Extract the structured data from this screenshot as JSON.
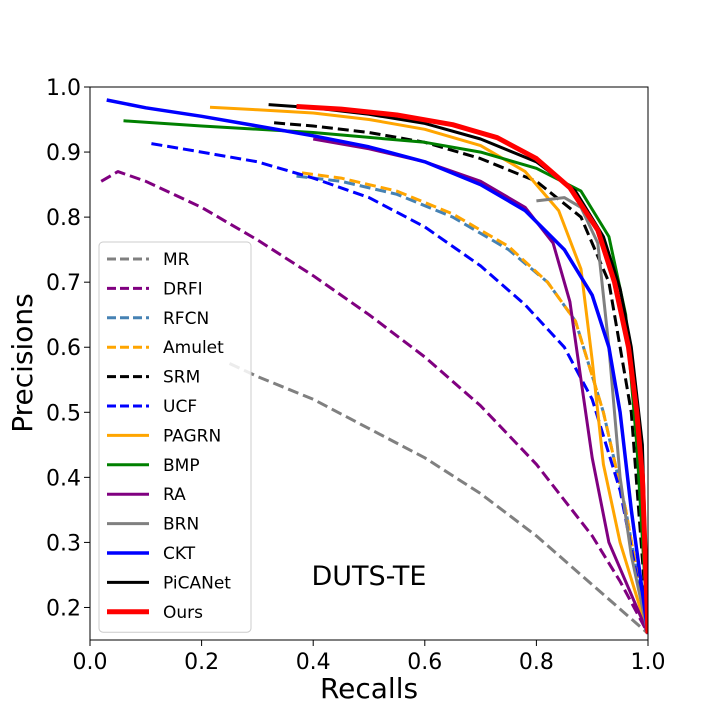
{
  "chart_data": {
    "type": "line",
    "title": "",
    "xlabel": "Recalls",
    "ylabel": "Precisions",
    "xlim": [
      0.0,
      1.0
    ],
    "ylim": [
      0.15,
      1.0
    ],
    "xticks": [
      0.0,
      0.2,
      0.4,
      0.6,
      0.8,
      1.0
    ],
    "xtick_labels": [
      "0.0",
      "0.2",
      "0.4",
      "0.6",
      "0.8",
      "1.0"
    ],
    "yticks": [
      0.2,
      0.3,
      0.4,
      0.5,
      0.6,
      0.7,
      0.8,
      0.9,
      1.0
    ],
    "ytick_labels": [
      "0.2",
      "0.3",
      "0.4",
      "0.5",
      "0.6",
      "0.7",
      "0.8",
      "0.9",
      "1.0"
    ],
    "grid": false,
    "legend_position": "lower-left",
    "annotation": "DUTS-TE",
    "series": [
      {
        "name": "MR",
        "color": "#808080",
        "dash": "dashed",
        "width": 3,
        "points": [
          [
            0.25,
            0.575
          ],
          [
            0.3,
            0.555
          ],
          [
            0.4,
            0.52
          ],
          [
            0.5,
            0.475
          ],
          [
            0.6,
            0.43
          ],
          [
            0.7,
            0.375
          ],
          [
            0.8,
            0.31
          ],
          [
            0.9,
            0.235
          ],
          [
            1.0,
            0.16
          ]
        ]
      },
      {
        "name": "DRFI",
        "color": "#800080",
        "dash": "dashed",
        "width": 3,
        "points": [
          [
            0.02,
            0.855
          ],
          [
            0.05,
            0.87
          ],
          [
            0.1,
            0.855
          ],
          [
            0.2,
            0.815
          ],
          [
            0.3,
            0.765
          ],
          [
            0.4,
            0.71
          ],
          [
            0.5,
            0.65
          ],
          [
            0.6,
            0.585
          ],
          [
            0.7,
            0.51
          ],
          [
            0.8,
            0.42
          ],
          [
            0.9,
            0.31
          ],
          [
            0.95,
            0.24
          ],
          [
            1.0,
            0.16
          ]
        ]
      },
      {
        "name": "RFCN",
        "color": "#4682b4",
        "dash": "dashed",
        "width": 3,
        "points": [
          [
            0.37,
            0.863
          ],
          [
            0.45,
            0.855
          ],
          [
            0.55,
            0.835
          ],
          [
            0.65,
            0.8
          ],
          [
            0.75,
            0.75
          ],
          [
            0.82,
            0.7
          ],
          [
            0.87,
            0.64
          ],
          [
            0.92,
            0.5
          ],
          [
            0.96,
            0.35
          ],
          [
            1.0,
            0.16
          ]
        ]
      },
      {
        "name": "Amulet",
        "color": "#ffa500",
        "dash": "dashed",
        "width": 3,
        "points": [
          [
            0.38,
            0.868
          ],
          [
            0.45,
            0.86
          ],
          [
            0.55,
            0.84
          ],
          [
            0.65,
            0.805
          ],
          [
            0.75,
            0.755
          ],
          [
            0.82,
            0.7
          ],
          [
            0.87,
            0.64
          ],
          [
            0.92,
            0.5
          ],
          [
            0.96,
            0.35
          ],
          [
            1.0,
            0.16
          ]
        ]
      },
      {
        "name": "SRM",
        "color": "#000000",
        "dash": "dashed",
        "width": 3,
        "points": [
          [
            0.33,
            0.945
          ],
          [
            0.4,
            0.94
          ],
          [
            0.5,
            0.93
          ],
          [
            0.6,
            0.915
          ],
          [
            0.7,
            0.89
          ],
          [
            0.8,
            0.855
          ],
          [
            0.88,
            0.8
          ],
          [
            0.93,
            0.7
          ],
          [
            0.97,
            0.5
          ],
          [
            1.0,
            0.16
          ]
        ]
      },
      {
        "name": "UCF",
        "color": "#0000ff",
        "dash": "dashed",
        "width": 3,
        "points": [
          [
            0.11,
            0.913
          ],
          [
            0.2,
            0.9
          ],
          [
            0.3,
            0.885
          ],
          [
            0.4,
            0.86
          ],
          [
            0.5,
            0.83
          ],
          [
            0.6,
            0.785
          ],
          [
            0.7,
            0.725
          ],
          [
            0.78,
            0.665
          ],
          [
            0.85,
            0.6
          ],
          [
            0.9,
            0.52
          ],
          [
            0.95,
            0.38
          ],
          [
            1.0,
            0.16
          ]
        ]
      },
      {
        "name": "PAGRN",
        "color": "#ffa500",
        "dash": "solid",
        "width": 3,
        "points": [
          [
            0.215,
            0.969
          ],
          [
            0.3,
            0.965
          ],
          [
            0.4,
            0.96
          ],
          [
            0.5,
            0.95
          ],
          [
            0.6,
            0.935
          ],
          [
            0.7,
            0.91
          ],
          [
            0.78,
            0.87
          ],
          [
            0.84,
            0.81
          ],
          [
            0.88,
            0.72
          ],
          [
            0.9,
            0.58
          ],
          [
            0.92,
            0.42
          ],
          [
            0.95,
            0.3
          ],
          [
            1.0,
            0.16
          ]
        ]
      },
      {
        "name": "BMP",
        "color": "#008000",
        "dash": "solid",
        "width": 3,
        "points": [
          [
            0.06,
            0.948
          ],
          [
            0.2,
            0.94
          ],
          [
            0.4,
            0.93
          ],
          [
            0.6,
            0.915
          ],
          [
            0.7,
            0.9
          ],
          [
            0.8,
            0.875
          ],
          [
            0.88,
            0.84
          ],
          [
            0.93,
            0.77
          ],
          [
            0.96,
            0.65
          ],
          [
            0.98,
            0.45
          ],
          [
            1.0,
            0.16
          ]
        ]
      },
      {
        "name": "RA",
        "color": "#800080",
        "dash": "solid",
        "width": 3,
        "points": [
          [
            0.4,
            0.92
          ],
          [
            0.5,
            0.905
          ],
          [
            0.6,
            0.885
          ],
          [
            0.7,
            0.855
          ],
          [
            0.78,
            0.815
          ],
          [
            0.83,
            0.76
          ],
          [
            0.86,
            0.67
          ],
          [
            0.88,
            0.55
          ],
          [
            0.9,
            0.43
          ],
          [
            0.93,
            0.3
          ],
          [
            1.0,
            0.16
          ]
        ]
      },
      {
        "name": "BRN",
        "color": "#808080",
        "dash": "solid",
        "width": 3,
        "points": [
          [
            0.8,
            0.825
          ],
          [
            0.85,
            0.83
          ],
          [
            0.88,
            0.815
          ],
          [
            0.91,
            0.76
          ],
          [
            0.93,
            0.6
          ],
          [
            0.95,
            0.4
          ],
          [
            0.97,
            0.28
          ],
          [
            1.0,
            0.16
          ]
        ]
      },
      {
        "name": "CKT",
        "color": "#0000ff",
        "dash": "solid",
        "width": 3.5,
        "points": [
          [
            0.03,
            0.98
          ],
          [
            0.1,
            0.968
          ],
          [
            0.2,
            0.955
          ],
          [
            0.3,
            0.94
          ],
          [
            0.4,
            0.925
          ],
          [
            0.5,
            0.908
          ],
          [
            0.6,
            0.885
          ],
          [
            0.7,
            0.85
          ],
          [
            0.78,
            0.81
          ],
          [
            0.85,
            0.75
          ],
          [
            0.9,
            0.68
          ],
          [
            0.93,
            0.6
          ],
          [
            0.95,
            0.5
          ],
          [
            0.97,
            0.35
          ],
          [
            1.0,
            0.16
          ]
        ]
      },
      {
        "name": "PiCANet",
        "color": "#000000",
        "dash": "solid",
        "width": 3,
        "points": [
          [
            0.32,
            0.973
          ],
          [
            0.4,
            0.968
          ],
          [
            0.5,
            0.958
          ],
          [
            0.6,
            0.944
          ],
          [
            0.7,
            0.92
          ],
          [
            0.8,
            0.885
          ],
          [
            0.87,
            0.84
          ],
          [
            0.92,
            0.77
          ],
          [
            0.95,
            0.69
          ],
          [
            0.97,
            0.6
          ],
          [
            0.99,
            0.45
          ],
          [
            1.0,
            0.16
          ]
        ]
      },
      {
        "name": "Ours",
        "color": "#ff0000",
        "dash": "solid",
        "width": 5,
        "points": [
          [
            0.37,
            0.97
          ],
          [
            0.45,
            0.966
          ],
          [
            0.55,
            0.957
          ],
          [
            0.65,
            0.942
          ],
          [
            0.73,
            0.922
          ],
          [
            0.8,
            0.89
          ],
          [
            0.86,
            0.845
          ],
          [
            0.91,
            0.78
          ],
          [
            0.94,
            0.7
          ],
          [
            0.965,
            0.6
          ],
          [
            0.98,
            0.5
          ],
          [
            0.99,
            0.4
          ],
          [
            1.0,
            0.16
          ]
        ]
      }
    ]
  }
}
